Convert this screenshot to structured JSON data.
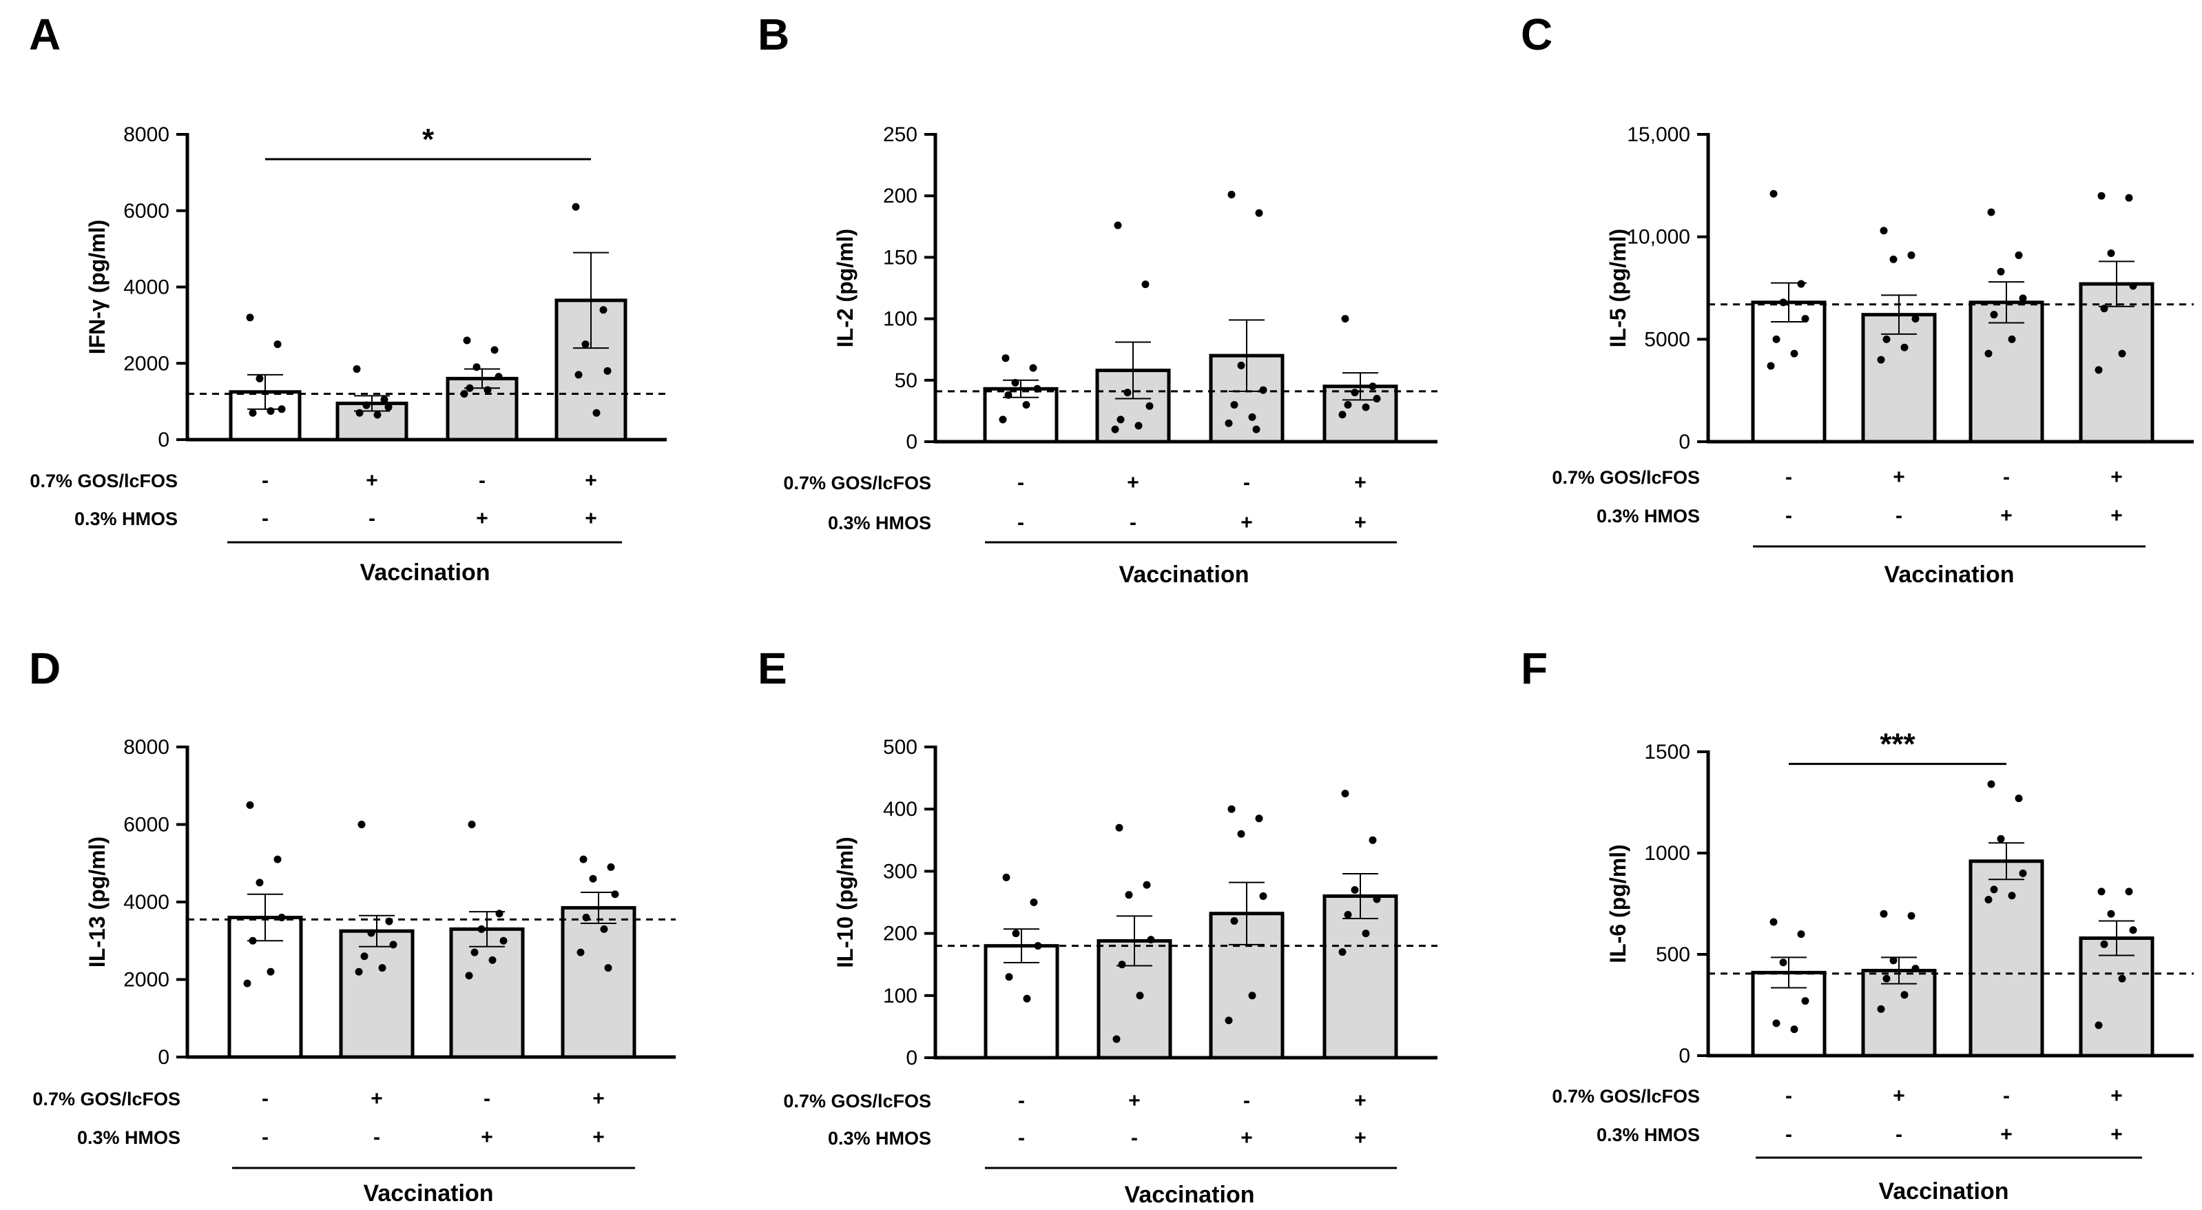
{
  "chart_data": [
    {
      "type": "bar",
      "panel_letter": "A",
      "ylabel": "IFN-γ (pg/ml)",
      "ylim": [
        0,
        8000
      ],
      "yticks": [
        "0",
        "2000",
        "4000",
        "6000",
        "8000"
      ],
      "ytick_values": [
        0,
        2000,
        4000,
        6000,
        8000
      ],
      "baseline": 1200,
      "row_labels": [
        "0.7% GOS/lcFOS",
        "0.3% HMOS"
      ],
      "gos": [
        "-",
        "+",
        "-",
        "+"
      ],
      "hmos": [
        "-",
        "-",
        "+",
        "+"
      ],
      "xlabel": "Vaccination",
      "values": [
        1250,
        950,
        1600,
        3650
      ],
      "errors": [
        450,
        200,
        250,
        1250
      ],
      "fills": [
        "#ffffff",
        "#d9d9d9",
        "#d9d9d9",
        "#d9d9d9"
      ],
      "points": [
        [
          3200,
          2500,
          1600,
          800,
          700,
          750
        ],
        [
          1850,
          1050,
          900,
          850,
          700,
          650
        ],
        [
          2600,
          2350,
          1900,
          1650,
          1350,
          1300,
          1200
        ],
        [
          6100,
          3400,
          2500,
          1800,
          1700,
          700
        ]
      ],
      "significance": {
        "from": 0,
        "to": 3,
        "label": "*",
        "y": 7350
      }
    },
    {
      "type": "bar",
      "panel_letter": "B",
      "ylabel": "IL-2 (pg/ml)",
      "ylim": [
        0,
        250
      ],
      "yticks": [
        "0",
        "50",
        "100",
        "150",
        "200",
        "250"
      ],
      "ytick_values": [
        0,
        50,
        100,
        150,
        200,
        250
      ],
      "baseline": 41,
      "row_labels": [
        "0.7% GOS/lcFOS",
        "0.3% HMOS"
      ],
      "gos": [
        "-",
        "+",
        "-",
        "+"
      ],
      "hmos": [
        "-",
        "-",
        "+",
        "+"
      ],
      "xlabel": "Vaccination",
      "values": [
        43,
        58,
        70,
        45
      ],
      "errors": [
        7,
        23,
        29,
        11
      ],
      "fills": [
        "#ffffff",
        "#d9d9d9",
        "#d9d9d9",
        "#d9d9d9"
      ],
      "points": [
        [
          68,
          60,
          48,
          43,
          38,
          30,
          18
        ],
        [
          176,
          128,
          40,
          29,
          18,
          13,
          10
        ],
        [
          201,
          186,
          62,
          42,
          30,
          20,
          15,
          10
        ],
        [
          100,
          45,
          40,
          35,
          30,
          28,
          22
        ]
      ],
      "significance": null
    },
    {
      "type": "bar",
      "panel_letter": "C",
      "ylabel": "IL-5 (pg/ml)",
      "ylim": [
        0,
        15000
      ],
      "yticks": [
        "0",
        "5000",
        "10,000",
        "15,000"
      ],
      "ytick_values": [
        0,
        5000,
        10000,
        15000
      ],
      "baseline": 6700,
      "row_labels": [
        "0.7% GOS/lcFOS",
        "0.3% HMOS"
      ],
      "gos": [
        "-",
        "+",
        "-",
        "+"
      ],
      "hmos": [
        "-",
        "-",
        "+",
        "+"
      ],
      "xlabel": "Vaccination",
      "values": [
        6800,
        6200,
        6800,
        7700
      ],
      "errors": [
        950,
        950,
        1000,
        1100
      ],
      "fills": [
        "#ffffff",
        "#d9d9d9",
        "#d9d9d9",
        "#d9d9d9"
      ],
      "points": [
        [
          12100,
          7700,
          6800,
          6000,
          5000,
          4300,
          3700
        ],
        [
          10300,
          9100,
          8900,
          6000,
          5000,
          4600,
          4000
        ],
        [
          11200,
          9100,
          8300,
          7000,
          6200,
          5000,
          4300
        ],
        [
          12000,
          11900,
          9200,
          7600,
          6500,
          4300,
          3500
        ]
      ],
      "significance": null
    },
    {
      "type": "bar",
      "panel_letter": "D",
      "ylabel": "IL-13 (pg/ml)",
      "ylim": [
        0,
        8000
      ],
      "yticks": [
        "0",
        "2000",
        "4000",
        "6000",
        "8000"
      ],
      "ytick_values": [
        0,
        2000,
        4000,
        6000,
        8000
      ],
      "baseline": 3550,
      "row_labels": [
        "0.7% GOS/lcFOS",
        "0.3% HMOS"
      ],
      "gos": [
        "-",
        "+",
        "-",
        "+"
      ],
      "hmos": [
        "-",
        "-",
        "+",
        "+"
      ],
      "xlabel": "Vaccination",
      "values": [
        3600,
        3250,
        3300,
        3850
      ],
      "errors": [
        600,
        400,
        450,
        400
      ],
      "fills": [
        "#ffffff",
        "#d9d9d9",
        "#d9d9d9",
        "#d9d9d9"
      ],
      "points": [
        [
          6500,
          5100,
          4500,
          3600,
          3000,
          2200,
          1900
        ],
        [
          6000,
          3500,
          3200,
          2900,
          2600,
          2300,
          2200
        ],
        [
          6000,
          3700,
          3300,
          3000,
          2700,
          2500,
          2100
        ],
        [
          5100,
          4900,
          4600,
          4200,
          3600,
          3300,
          2700,
          2300
        ]
      ],
      "significance": null
    },
    {
      "type": "bar",
      "panel_letter": "E",
      "ylabel": "IL-10 (pg/ml)",
      "ylim": [
        0,
        500
      ],
      "yticks": [
        "0",
        "100",
        "200",
        "300",
        "400",
        "500"
      ],
      "ytick_values": [
        0,
        100,
        200,
        300,
        400,
        500
      ],
      "baseline": 180,
      "row_labels": [
        "0.7% GOS/lcFOS",
        "0.3% HMOS"
      ],
      "gos": [
        "-",
        "+",
        "-",
        "+"
      ],
      "hmos": [
        "-",
        "-",
        "+",
        "+"
      ],
      "xlabel": "Vaccination",
      "values": [
        180,
        188,
        232,
        260
      ],
      "errors": [
        27,
        40,
        50,
        36
      ],
      "fills": [
        "#ffffff",
        "#d9d9d9",
        "#d9d9d9",
        "#d9d9d9"
      ],
      "points": [
        [
          290,
          250,
          200,
          180,
          130,
          95
        ],
        [
          370,
          278,
          262,
          190,
          150,
          100,
          30
        ],
        [
          400,
          385,
          360,
          260,
          220,
          100,
          60
        ],
        [
          425,
          350,
          270,
          255,
          230,
          200,
          170
        ]
      ],
      "significance": null
    },
    {
      "type": "bar",
      "panel_letter": "F",
      "ylabel": "IL-6 (pg/ml)",
      "ylim": [
        0,
        1500
      ],
      "yticks": [
        "0",
        "500",
        "1000",
        "1500"
      ],
      "ytick_values": [
        0,
        500,
        1000,
        1500
      ],
      "baseline": 405,
      "row_labels": [
        "0.7% GOS/lcFOS",
        "0.3% HMOS"
      ],
      "gos": [
        "-",
        "+",
        "-",
        "+"
      ],
      "hmos": [
        "-",
        "-",
        "+",
        "+"
      ],
      "xlabel": "Vaccination",
      "values": [
        410,
        420,
        960,
        580
      ],
      "errors": [
        75,
        65,
        90,
        85
      ],
      "fills": [
        "#ffffff",
        "#d9d9d9",
        "#d9d9d9",
        "#d9d9d9"
      ],
      "points": [
        [
          660,
          600,
          460,
          270,
          160,
          130
        ],
        [
          700,
          690,
          470,
          430,
          380,
          300,
          230
        ],
        [
          1340,
          1270,
          1070,
          900,
          820,
          790,
          770
        ],
        [
          810,
          810,
          700,
          620,
          550,
          380,
          150
        ]
      ],
      "significance": {
        "from": 0,
        "to": 2,
        "label": "***",
        "y": 1440
      }
    }
  ]
}
